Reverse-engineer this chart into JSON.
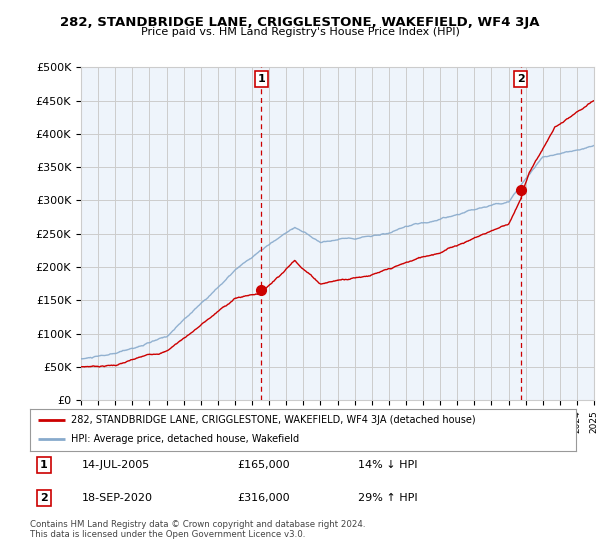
{
  "title": "282, STANDBRIDGE LANE, CRIGGLESTONE, WAKEFIELD, WF4 3JA",
  "subtitle": "Price paid vs. HM Land Registry's House Price Index (HPI)",
  "legend_label_red": "282, STANDBRIDGE LANE, CRIGGLESTONE, WAKEFIELD, WF4 3JA (detached house)",
  "legend_label_blue": "HPI: Average price, detached house, Wakefield",
  "sale1_date": "14-JUL-2005",
  "sale1_price": "£165,000",
  "sale1_hpi": "14% ↓ HPI",
  "sale2_date": "18-SEP-2020",
  "sale2_price": "£316,000",
  "sale2_hpi": "29% ↑ HPI",
  "footer": "Contains HM Land Registry data © Crown copyright and database right 2024.\nThis data is licensed under the Open Government Licence v3.0.",
  "ylim": [
    0,
    500000
  ],
  "yticks": [
    0,
    50000,
    100000,
    150000,
    200000,
    250000,
    300000,
    350000,
    400000,
    450000,
    500000
  ],
  "ytick_labels": [
    "£0",
    "£50K",
    "£100K",
    "£150K",
    "£200K",
    "£250K",
    "£300K",
    "£350K",
    "£400K",
    "£450K",
    "£500K"
  ],
  "sale1_year": 2005.54,
  "sale1_value": 165000,
  "sale2_year": 2020.72,
  "sale2_value": 316000,
  "background_color": "#ffffff",
  "plot_bg_color": "#eef4fb",
  "grid_color": "#cccccc",
  "red_color": "#cc0000",
  "blue_color": "#88aacc"
}
